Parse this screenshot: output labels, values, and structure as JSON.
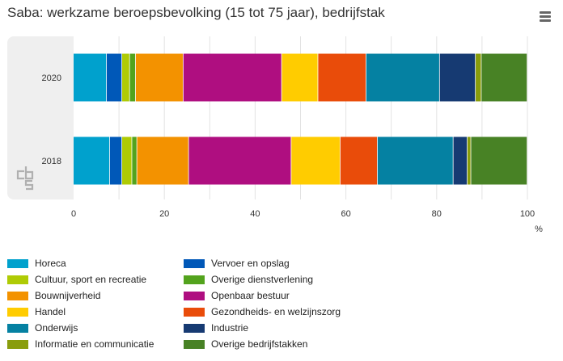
{
  "title": "Saba: werkzame beroepsbevolking (15 tot 75 jaar), bedrijfstak",
  "menu_icon": "hamburger-menu-icon",
  "logo_icon": "cbs-logo-icon",
  "chart_data": {
    "type": "bar",
    "orientation": "horizontal",
    "stacked": true,
    "title": "Saba: werkzame beroepsbevolking (15 tot 75 jaar), bedrijfstak",
    "categories": [
      "2020",
      "2018"
    ],
    "xlim": [
      0,
      100
    ],
    "xticks": [
      "0",
      "20",
      "40",
      "60",
      "80",
      "100"
    ],
    "xunit": "%",
    "grid": true,
    "legend_position": "bottom",
    "series": [
      {
        "name": "Horeca",
        "color": "#00a1cd",
        "values": [
          7.3,
          8.0
        ]
      },
      {
        "name": "Vervoer en opslag",
        "color": "#0058b8",
        "values": [
          3.4,
          2.7
        ]
      },
      {
        "name": "Cultuur, sport en recreatie",
        "color": "#afcb05",
        "values": [
          1.7,
          2.2
        ]
      },
      {
        "name": "Overige dienstverlening",
        "color": "#53a31d",
        "values": [
          1.3,
          1.1
        ]
      },
      {
        "name": "Bouwnijverheid",
        "color": "#f39200",
        "values": [
          10.5,
          11.4
        ]
      },
      {
        "name": "Openbaar bestuur",
        "color": "#af0e80",
        "values": [
          21.7,
          22.6
        ]
      },
      {
        "name": "Handel",
        "color": "#ffcc00",
        "values": [
          8.0,
          10.8
        ]
      },
      {
        "name": "Gezondheids- en welzijnszorg",
        "color": "#e94c0a",
        "values": [
          10.6,
          8.2
        ]
      },
      {
        "name": "Onderwijs",
        "color": "#0581a2",
        "values": [
          16.2,
          16.7
        ]
      },
      {
        "name": "Industrie",
        "color": "#163a72",
        "values": [
          7.9,
          3.1
        ]
      },
      {
        "name": "Informatie en communicatie",
        "color": "#899d0c",
        "values": [
          1.3,
          0.8
        ]
      },
      {
        "name": "Overige bedrijfstakken",
        "color": "#488225",
        "values": [
          10.1,
          12.4
        ]
      }
    ]
  }
}
